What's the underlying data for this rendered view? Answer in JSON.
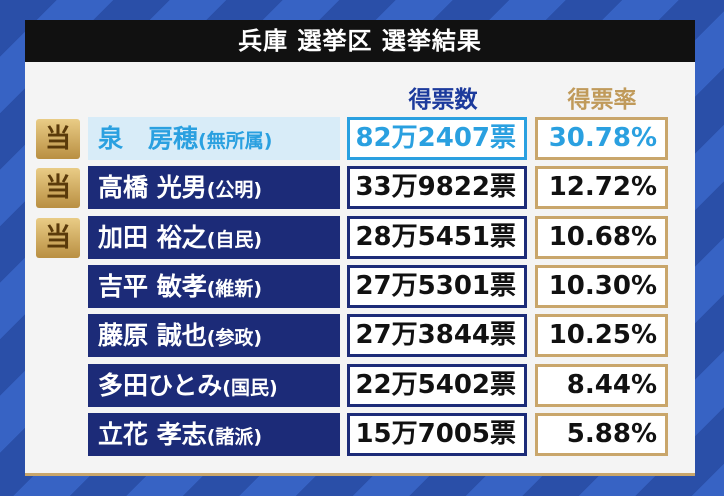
{
  "header": {
    "title": "兵庫 選挙区 選挙結果"
  },
  "table": {
    "columns": [
      "得票数",
      "得票率"
    ],
    "rows": [
      {
        "mark": "当",
        "name": "泉　房穂",
        "party": "(無所属)",
        "votes": "82万2407票",
        "rate": "30.78%"
      },
      {
        "mark": "当",
        "name": "高橋 光男",
        "party": "(公明)",
        "votes": "33万9822票",
        "rate": "12.72%"
      },
      {
        "mark": "当",
        "name": "加田 裕之",
        "party": "(自民)",
        "votes": "28万5451票",
        "rate": "10.68%"
      },
      {
        "name": "吉平 敏孝",
        "party": "(維新)",
        "votes": "27万5301票",
        "rate": "10.30%"
      },
      {
        "name": "藤原 誠也",
        "party": "(参政)",
        "votes": "27万3844票",
        "rate": "10.25%"
      },
      {
        "name": "多田ひとみ",
        "party": "(国民)",
        "votes": "22万5402票",
        "rate": "8.44%"
      },
      {
        "name": "立花 孝志",
        "party": "(諸派)",
        "votes": "15万7005票",
        "rate": "5.88%"
      }
    ]
  }
}
